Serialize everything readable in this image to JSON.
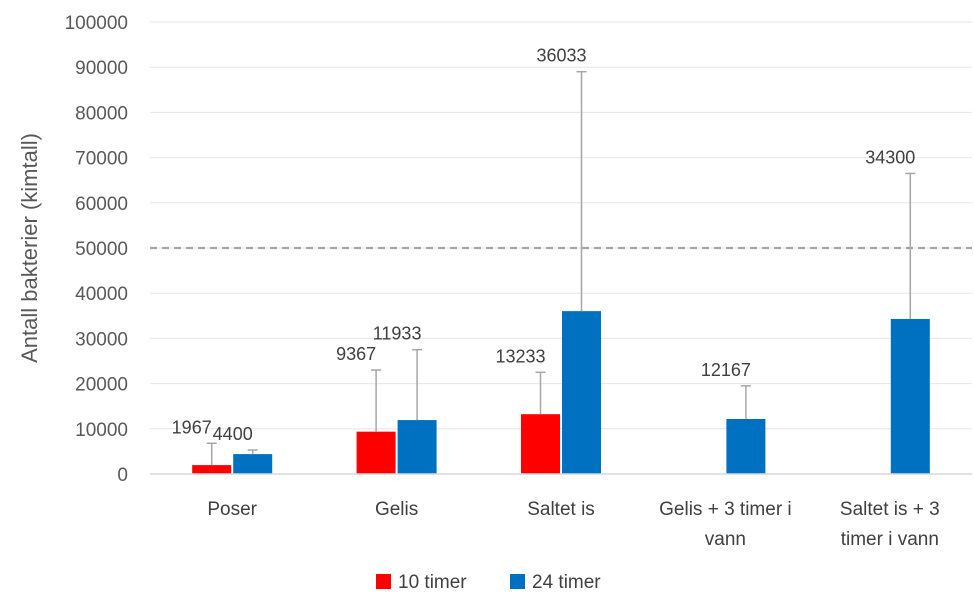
{
  "chart_data": {
    "type": "bar",
    "ylabel": "Antall bakterier (kimtall)",
    "ylim": [
      0,
      100000
    ],
    "yticks": [
      "0",
      "10000",
      "20000",
      "30000",
      "40000",
      "50000",
      "60000",
      "70000",
      "80000",
      "90000",
      "100000"
    ],
    "categories": [
      [
        "Poser"
      ],
      [
        "Gelis"
      ],
      [
        "Saltet is"
      ],
      [
        "Gelis + 3 timer i",
        "vann"
      ],
      [
        "Saltet is + 3",
        "timer i vann"
      ]
    ],
    "series": [
      {
        "name": "10 timer",
        "color": "#ff0000",
        "values": [
          1967,
          9367,
          13233,
          null,
          null
        ],
        "error_upper": [
          6800,
          23000,
          22500,
          null,
          null
        ],
        "labels": [
          "1967",
          "9367",
          "13233",
          "",
          ""
        ]
      },
      {
        "name": "24 timer",
        "color": "#0070c0",
        "values": [
          4400,
          11933,
          36033,
          12167,
          34300
        ],
        "error_upper": [
          5300,
          27500,
          89000,
          19500,
          66500
        ],
        "labels": [
          "4400",
          "11933",
          "36033",
          "12167",
          "34300"
        ]
      }
    ],
    "reference_line": {
      "value": 50000,
      "style": "dashed",
      "color": "#a6a6a6"
    },
    "legend_position": "bottom",
    "grid": true,
    "error_bar_color": "#a6a6a6"
  }
}
